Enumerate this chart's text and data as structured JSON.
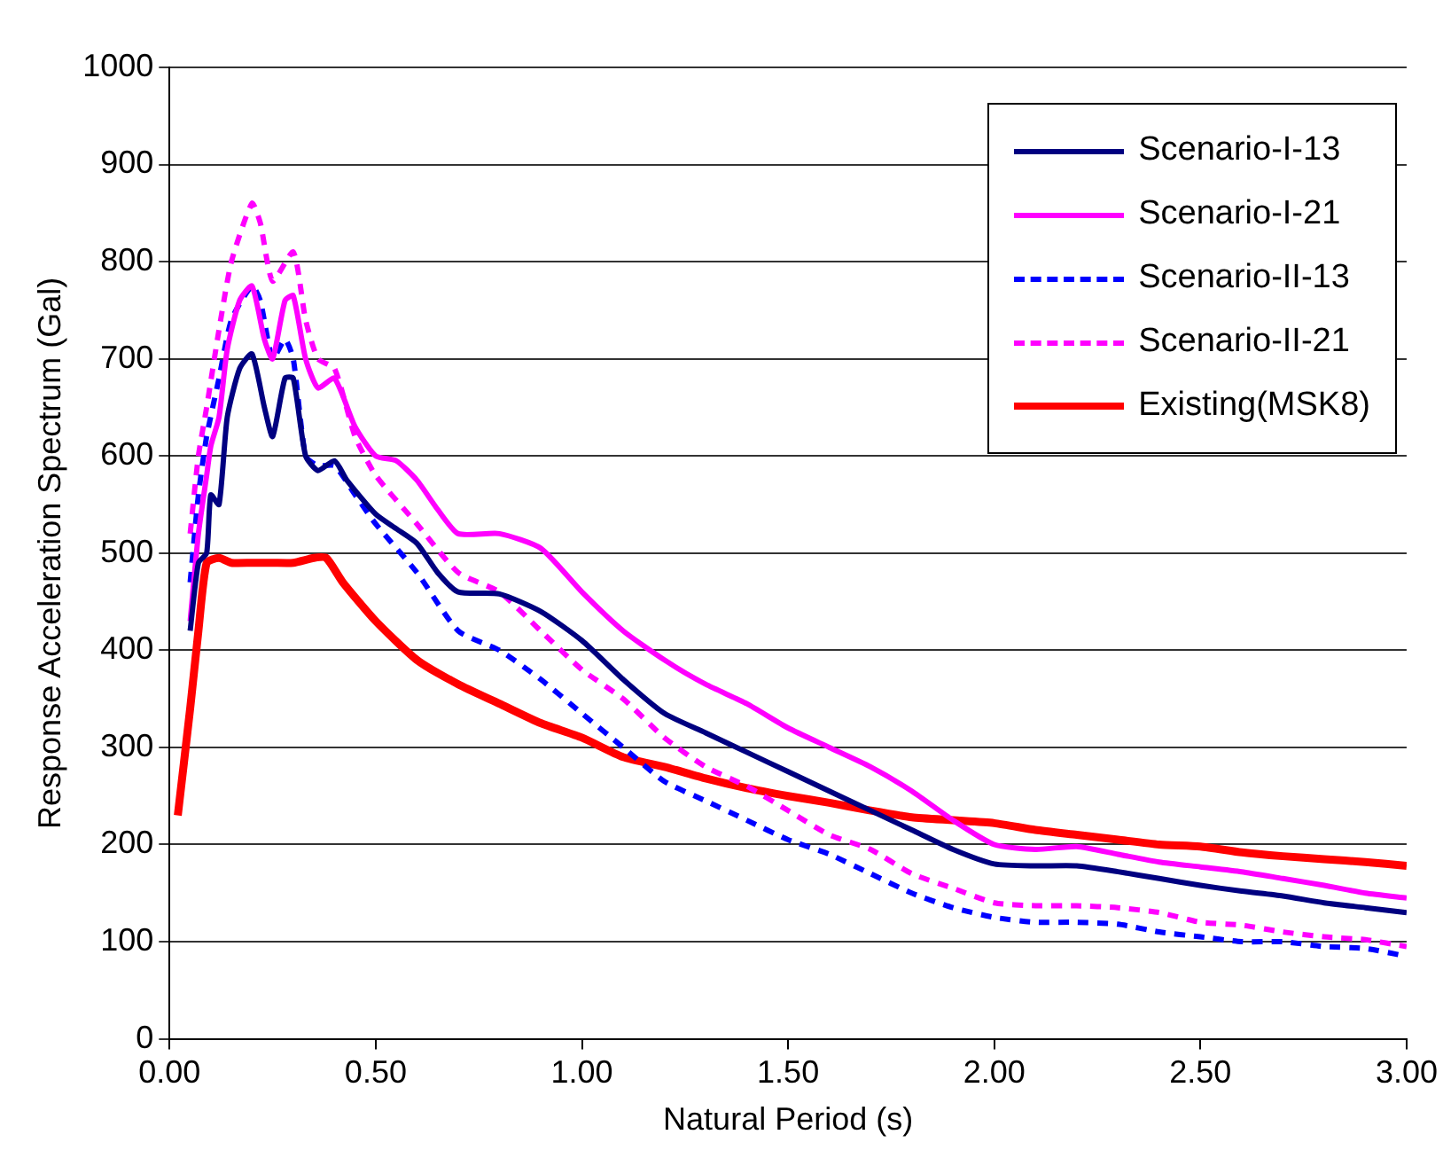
{
  "chart_data": {
    "type": "line",
    "xlabel": "Natural Period (s)",
    "ylabel": "Response Acceleration Spectrum (Gal)",
    "xlim": [
      0,
      3
    ],
    "xticks": [
      {
        "value": 0,
        "label": "0.00"
      },
      {
        "value": 0.5,
        "label": "0.50"
      },
      {
        "value": 1,
        "label": "1.00"
      },
      {
        "value": 1.5,
        "label": "1.50"
      },
      {
        "value": 2,
        "label": "2.00"
      },
      {
        "value": 2.5,
        "label": "2.50"
      },
      {
        "value": 3,
        "label": "3.00"
      }
    ],
    "ylim": [
      0,
      1000
    ],
    "yticks": [
      0,
      100,
      200,
      300,
      400,
      500,
      600,
      700,
      800,
      900,
      1000
    ],
    "grid": "y",
    "legend": "top right",
    "marker": "none",
    "series": [
      {
        "name": "Scenario-I-13",
        "color": "#000080",
        "line_style": "solid",
        "x": [
          0.05,
          0.07,
          0.09,
          0.1,
          0.12,
          0.14,
          0.17,
          0.2,
          0.23,
          0.25,
          0.28,
          0.3,
          0.33,
          0.36,
          0.4,
          0.43,
          0.5,
          0.55,
          0.6,
          0.65,
          0.7,
          0.8,
          0.9,
          1.0,
          1.1,
          1.2,
          1.3,
          1.4,
          1.5,
          1.6,
          1.7,
          1.8,
          1.9,
          2.0,
          2.1,
          2.2,
          2.3,
          2.4,
          2.5,
          2.6,
          2.7,
          2.8,
          2.9,
          3.0
        ],
        "values": [
          420,
          490,
          500,
          560,
          550,
          640,
          690,
          705,
          650,
          620,
          680,
          680,
          600,
          585,
          595,
          575,
          540,
          525,
          510,
          480,
          460,
          458,
          440,
          410,
          370,
          335,
          315,
          295,
          275,
          255,
          235,
          215,
          195,
          180,
          178,
          178,
          172,
          165,
          158,
          152,
          147,
          140,
          135,
          130
        ]
      },
      {
        "name": "Scenario-I-21",
        "color": "#ff00ff",
        "line_style": "solid",
        "x": [
          0.05,
          0.07,
          0.09,
          0.1,
          0.12,
          0.14,
          0.17,
          0.2,
          0.23,
          0.25,
          0.28,
          0.3,
          0.33,
          0.36,
          0.4,
          0.45,
          0.5,
          0.55,
          0.6,
          0.65,
          0.7,
          0.8,
          0.9,
          1.0,
          1.1,
          1.2,
          1.3,
          1.4,
          1.5,
          1.6,
          1.7,
          1.8,
          1.9,
          2.0,
          2.1,
          2.2,
          2.3,
          2.4,
          2.5,
          2.6,
          2.7,
          2.8,
          2.9,
          3.0
        ],
        "values": [
          430,
          520,
          580,
          610,
          640,
          710,
          760,
          775,
          720,
          700,
          760,
          765,
          700,
          670,
          680,
          630,
          600,
          595,
          575,
          545,
          520,
          520,
          505,
          460,
          420,
          390,
          365,
          345,
          320,
          300,
          280,
          255,
          225,
          200,
          195,
          198,
          190,
          182,
          177,
          172,
          165,
          158,
          150,
          145
        ]
      },
      {
        "name": "Scenario-II-13",
        "color": "#0000ff",
        "line_style": "dashed",
        "x": [
          0.05,
          0.07,
          0.09,
          0.12,
          0.15,
          0.2,
          0.22,
          0.25,
          0.28,
          0.3,
          0.33,
          0.36,
          0.4,
          0.45,
          0.5,
          0.6,
          0.7,
          0.8,
          0.9,
          1.0,
          1.1,
          1.2,
          1.3,
          1.4,
          1.5,
          1.6,
          1.7,
          1.8,
          1.9,
          2.0,
          2.1,
          2.2,
          2.3,
          2.4,
          2.5,
          2.6,
          2.7,
          2.8,
          2.9,
          3.0
        ],
        "values": [
          470,
          560,
          620,
          680,
          740,
          775,
          760,
          700,
          720,
          700,
          600,
          590,
          590,
          560,
          530,
          480,
          420,
          400,
          370,
          335,
          300,
          265,
          245,
          225,
          205,
          190,
          170,
          150,
          135,
          125,
          120,
          120,
          118,
          110,
          105,
          100,
          100,
          95,
          93,
          85
        ]
      },
      {
        "name": "Scenario-II-21",
        "color": "#ff00ff",
        "line_style": "dashed",
        "x": [
          0.05,
          0.07,
          0.09,
          0.12,
          0.15,
          0.2,
          0.22,
          0.25,
          0.3,
          0.33,
          0.36,
          0.4,
          0.45,
          0.5,
          0.6,
          0.7,
          0.8,
          0.9,
          1.0,
          1.1,
          1.2,
          1.3,
          1.4,
          1.5,
          1.6,
          1.7,
          1.8,
          1.9,
          2.0,
          2.1,
          2.2,
          2.3,
          2.4,
          2.5,
          2.6,
          2.7,
          2.8,
          2.9,
          3.0
        ],
        "values": [
          520,
          600,
          650,
          730,
          800,
          860,
          840,
          780,
          810,
          740,
          700,
          690,
          620,
          580,
          530,
          480,
          460,
          420,
          380,
          350,
          310,
          280,
          260,
          235,
          210,
          195,
          170,
          155,
          140,
          137,
          137,
          135,
          130,
          120,
          117,
          110,
          105,
          102,
          95
        ]
      },
      {
        "name": "Existing(MSK8)",
        "color": "#ff0000",
        "line_style": "solid",
        "x": [
          0.02,
          0.05,
          0.07,
          0.09,
          0.12,
          0.15,
          0.2,
          0.25,
          0.3,
          0.35,
          0.38,
          0.42,
          0.5,
          0.6,
          0.7,
          0.8,
          0.9,
          1.0,
          1.1,
          1.2,
          1.3,
          1.4,
          1.5,
          1.6,
          1.7,
          1.8,
          1.9,
          2.0,
          2.1,
          2.2,
          2.3,
          2.4,
          2.5,
          2.6,
          2.7,
          2.8,
          2.9,
          3.0
        ],
        "values": [
          230,
          340,
          420,
          490,
          495,
          490,
          490,
          490,
          490,
          495,
          495,
          470,
          430,
          390,
          365,
          345,
          325,
          310,
          290,
          280,
          268,
          258,
          250,
          243,
          235,
          228,
          225,
          222,
          215,
          210,
          205,
          200,
          198,
          192,
          188,
          185,
          182,
          178
        ]
      }
    ]
  }
}
